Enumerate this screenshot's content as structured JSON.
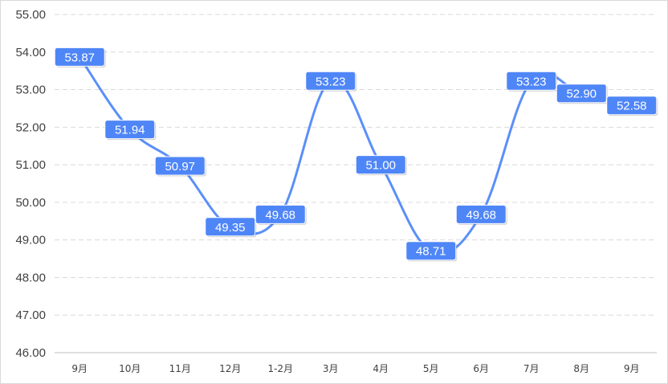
{
  "chart_data": {
    "type": "line",
    "title": "",
    "xlabel": "",
    "ylabel": "",
    "categories": [
      "9月",
      "10月",
      "11月",
      "12月",
      "1-2月",
      "3月",
      "4月",
      "5月",
      "6月",
      "7月",
      "8月",
      "9月"
    ],
    "series": [
      {
        "values": [
          53.87,
          51.94,
          50.97,
          49.35,
          49.68,
          53.23,
          51.0,
          48.71,
          49.68,
          53.23,
          52.9,
          52.58
        ],
        "labels": [
          "53.87",
          "51.94",
          "50.97",
          "49.35",
          "49.68",
          "53.23",
          "51.00",
          "48.71",
          "49.68",
          "53.23",
          "52.90",
          "52.58"
        ]
      }
    ],
    "ylim": [
      46,
      55
    ],
    "yticks": [
      "46.00",
      "47.00",
      "48.00",
      "49.00",
      "50.00",
      "51.00",
      "52.00",
      "53.00",
      "54.00",
      "55.00"
    ],
    "grid": "horizontal dashed",
    "legend": "none",
    "smooth": true,
    "colors": {
      "line": "#5b8ff9",
      "label_bg": "#4f86f7",
      "label_text": "#ffffff"
    }
  }
}
